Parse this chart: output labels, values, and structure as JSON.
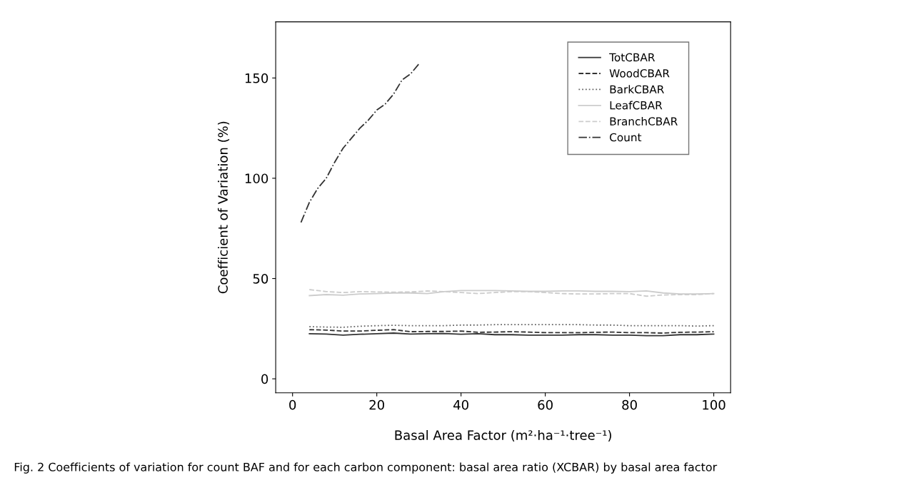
{
  "chart_data": {
    "type": "line",
    "xlabel": "Basal Area Factor (m²·ha⁻¹·tree⁻¹)",
    "ylabel": "Coefficient of Variation (%)",
    "annotations": [
      "Fig. 2 Coefficients of variation for count BAF and for each carbon component: basal area ratio (XCBAR) by basal area factor"
    ],
    "x": [
      4,
      8,
      12,
      16,
      20,
      24,
      28,
      32,
      36,
      40,
      44,
      48,
      52,
      56,
      60,
      64,
      68,
      72,
      76,
      80,
      84,
      88,
      92,
      96,
      100
    ],
    "series": [
      {
        "name": "TotCBAR",
        "color": "#333333",
        "line_style": "solid",
        "values": [
          22.5,
          22.3,
          21.8,
          22.2,
          22.5,
          22.8,
          22.3,
          22.5,
          22.6,
          22.2,
          22.5,
          22,
          22,
          21.8,
          21.8,
          21.8,
          22,
          22,
          21.8,
          21.8,
          21.5,
          21.5,
          22,
          22,
          22.3
        ]
      },
      {
        "name": "WoodCBAR",
        "color": "#333333",
        "line_style": "dashed",
        "values": [
          24.5,
          24.3,
          23.8,
          23.8,
          24.2,
          24.5,
          23.5,
          23.6,
          23.6,
          23.8,
          23.2,
          23.3,
          23.5,
          23.3,
          23,
          23,
          23,
          23.2,
          23.3,
          23,
          23,
          22.8,
          23.2,
          23.3,
          23.5
        ]
      },
      {
        "name": "BarkCBAR",
        "color": "#666666",
        "line_style": "dotted",
        "values": [
          26,
          25.8,
          25.7,
          26.2,
          26.5,
          26.7,
          26.5,
          26.5,
          26.5,
          26.8,
          26.8,
          27,
          27,
          27,
          27,
          27,
          27,
          26.8,
          26.8,
          26.5,
          26.5,
          26.5,
          26.5,
          26.3,
          26.5
        ]
      },
      {
        "name": "LeafCBAR",
        "color": "#cccccc",
        "line_style": "solid",
        "values": [
          41.5,
          42,
          41.7,
          42.3,
          42.5,
          42.8,
          42.8,
          42.5,
          43.5,
          44,
          44,
          44,
          43.8,
          43.6,
          43.6,
          43.8,
          43.8,
          43.6,
          43.6,
          43.5,
          43.8,
          42.8,
          42.3,
          42.3,
          42.5
        ]
      },
      {
        "name": "BranchCBAR",
        "color": "#cccccc",
        "line_style": "dashed",
        "values": [
          44.5,
          43.5,
          43,
          43.5,
          43.3,
          43.2,
          43.3,
          43.8,
          43.5,
          43,
          42.5,
          43,
          43.5,
          43.5,
          43,
          42.5,
          42.3,
          42.3,
          42.5,
          42.5,
          41.2,
          41.8,
          42,
          42,
          42.5
        ]
      },
      {
        "name": "Count",
        "color": "#333333",
        "line_style": "dashdot",
        "x": [
          2,
          4,
          6,
          8,
          10,
          12,
          14,
          16,
          18,
          20,
          22,
          24,
          26,
          28,
          30
        ],
        "values": [
          78,
          88,
          95,
          100,
          108,
          115,
          120,
          125,
          129,
          134,
          137,
          142,
          149,
          152,
          157
        ]
      }
    ],
    "xlim": [
      -4,
      104
    ],
    "ylim": [
      -7,
      178
    ],
    "xticks": [
      0,
      20,
      40,
      60,
      80,
      100
    ],
    "yticks": [
      0,
      50,
      100,
      150
    ],
    "legend": "top right",
    "grid": false
  }
}
